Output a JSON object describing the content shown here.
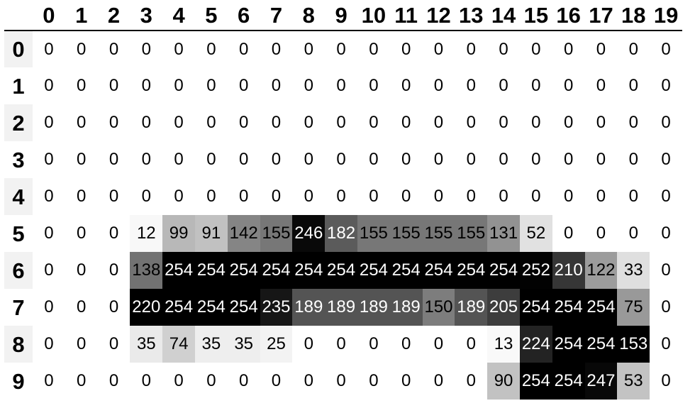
{
  "table": {
    "col_headers": [
      "0",
      "1",
      "2",
      "3",
      "4",
      "5",
      "6",
      "7",
      "8",
      "9",
      "10",
      "11",
      "12",
      "13",
      "14",
      "15",
      "16",
      "17",
      "18",
      "19"
    ],
    "row_headers": [
      "0",
      "1",
      "2",
      "3",
      "4",
      "5",
      "6",
      "7",
      "8",
      "9"
    ],
    "rows": [
      [
        0,
        0,
        0,
        0,
        0,
        0,
        0,
        0,
        0,
        0,
        0,
        0,
        0,
        0,
        0,
        0,
        0,
        0,
        0,
        0
      ],
      [
        0,
        0,
        0,
        0,
        0,
        0,
        0,
        0,
        0,
        0,
        0,
        0,
        0,
        0,
        0,
        0,
        0,
        0,
        0,
        0
      ],
      [
        0,
        0,
        0,
        0,
        0,
        0,
        0,
        0,
        0,
        0,
        0,
        0,
        0,
        0,
        0,
        0,
        0,
        0,
        0,
        0
      ],
      [
        0,
        0,
        0,
        0,
        0,
        0,
        0,
        0,
        0,
        0,
        0,
        0,
        0,
        0,
        0,
        0,
        0,
        0,
        0,
        0
      ],
      [
        0,
        0,
        0,
        0,
        0,
        0,
        0,
        0,
        0,
        0,
        0,
        0,
        0,
        0,
        0,
        0,
        0,
        0,
        0,
        0
      ],
      [
        0,
        0,
        0,
        12,
        99,
        91,
        142,
        155,
        246,
        182,
        155,
        155,
        155,
        155,
        131,
        52,
        0,
        0,
        0,
        0
      ],
      [
        0,
        0,
        0,
        138,
        254,
        254,
        254,
        254,
        254,
        254,
        254,
        254,
        254,
        254,
        254,
        252,
        210,
        122,
        33,
        0
      ],
      [
        0,
        0,
        0,
        220,
        254,
        254,
        254,
        235,
        189,
        189,
        189,
        189,
        150,
        189,
        205,
        254,
        254,
        254,
        75,
        0
      ],
      [
        0,
        0,
        0,
        35,
        74,
        35,
        35,
        25,
        0,
        0,
        0,
        0,
        0,
        0,
        13,
        224,
        254,
        254,
        153,
        0
      ],
      [
        0,
        0,
        0,
        0,
        0,
        0,
        0,
        0,
        0,
        0,
        0,
        0,
        0,
        0,
        90,
        254,
        254,
        247,
        53,
        0
      ]
    ]
  },
  "colors": {
    "page_background": "#ffffff",
    "header_rule": "#000000",
    "row_header_stripe": "#f2f2f2",
    "cell_text_dark": "#000000",
    "cell_text_light": "#ffffff",
    "greys_stops": [
      255,
      240,
      217,
      189,
      150,
      115,
      82,
      37,
      0
    ]
  },
  "colormap": {
    "name": "Greys",
    "normalization": "per-column",
    "text_threshold": 104
  },
  "chart_data": {
    "type": "heatmap",
    "title": "",
    "x_labels": [
      "0",
      "1",
      "2",
      "3",
      "4",
      "5",
      "6",
      "7",
      "8",
      "9",
      "10",
      "11",
      "12",
      "13",
      "14",
      "15",
      "16",
      "17",
      "18",
      "19"
    ],
    "y_labels": [
      "0",
      "1",
      "2",
      "3",
      "4",
      "5",
      "6",
      "7",
      "8",
      "9"
    ],
    "values": [
      [
        0,
        0,
        0,
        0,
        0,
        0,
        0,
        0,
        0,
        0,
        0,
        0,
        0,
        0,
        0,
        0,
        0,
        0,
        0,
        0
      ],
      [
        0,
        0,
        0,
        0,
        0,
        0,
        0,
        0,
        0,
        0,
        0,
        0,
        0,
        0,
        0,
        0,
        0,
        0,
        0,
        0
      ],
      [
        0,
        0,
        0,
        0,
        0,
        0,
        0,
        0,
        0,
        0,
        0,
        0,
        0,
        0,
        0,
        0,
        0,
        0,
        0,
        0
      ],
      [
        0,
        0,
        0,
        0,
        0,
        0,
        0,
        0,
        0,
        0,
        0,
        0,
        0,
        0,
        0,
        0,
        0,
        0,
        0,
        0
      ],
      [
        0,
        0,
        0,
        0,
        0,
        0,
        0,
        0,
        0,
        0,
        0,
        0,
        0,
        0,
        0,
        0,
        0,
        0,
        0,
        0
      ],
      [
        0,
        0,
        0,
        12,
        99,
        91,
        142,
        155,
        246,
        182,
        155,
        155,
        155,
        155,
        131,
        52,
        0,
        0,
        0,
        0
      ],
      [
        0,
        0,
        0,
        138,
        254,
        254,
        254,
        254,
        254,
        254,
        254,
        254,
        254,
        254,
        254,
        252,
        210,
        122,
        33,
        0
      ],
      [
        0,
        0,
        0,
        220,
        254,
        254,
        254,
        235,
        189,
        189,
        189,
        189,
        150,
        189,
        205,
        254,
        254,
        254,
        75,
        0
      ],
      [
        0,
        0,
        0,
        35,
        74,
        35,
        35,
        25,
        0,
        0,
        0,
        0,
        0,
        0,
        13,
        224,
        254,
        254,
        153,
        0
      ],
      [
        0,
        0,
        0,
        0,
        0,
        0,
        0,
        0,
        0,
        0,
        0,
        0,
        0,
        0,
        90,
        254,
        254,
        247,
        53,
        0
      ]
    ],
    "value_range": [
      0,
      254
    ],
    "colormap": "Greys (white to black), normalized per column",
    "legend": "none",
    "grid": "off",
    "cell_labels": "on"
  }
}
